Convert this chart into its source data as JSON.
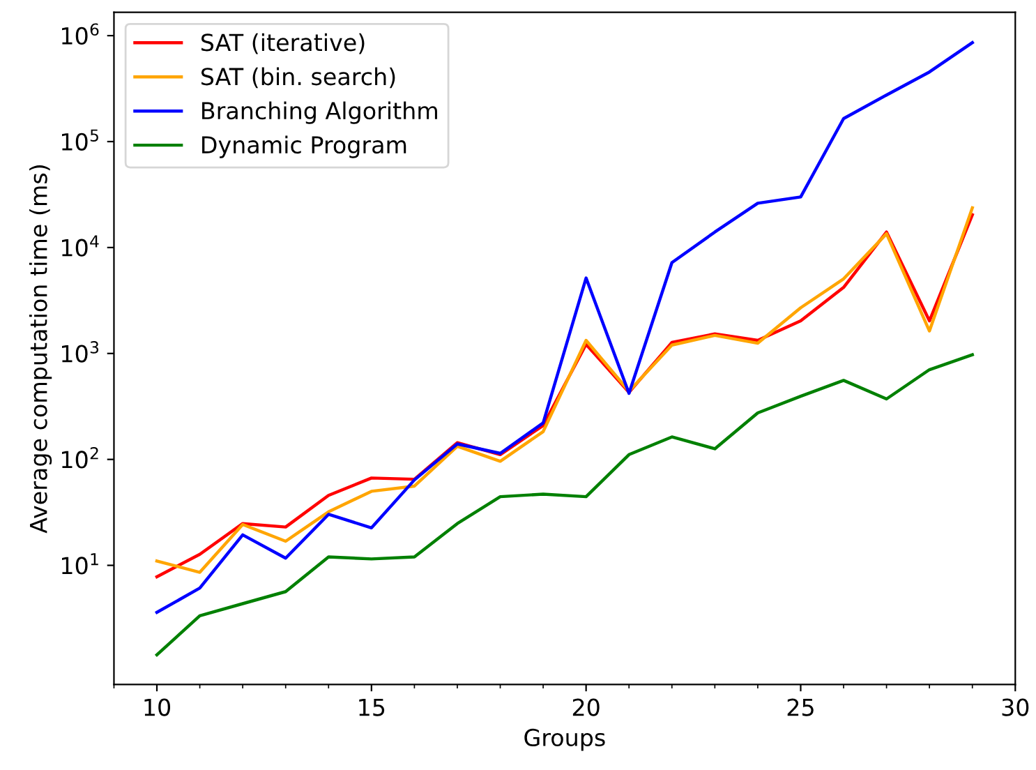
{
  "chart_data": {
    "type": "line",
    "xlabel": "Groups",
    "ylabel": "Average computation time (ms)",
    "log": "y",
    "grid": false,
    "legend": "top left",
    "x": [
      10,
      11,
      12,
      13,
      14,
      15,
      16,
      17,
      18,
      19,
      20,
      21,
      22,
      23,
      24,
      25,
      26,
      27,
      28,
      29
    ],
    "xlim": [
      9,
      30
    ],
    "xticks": [
      {
        "value": 9,
        "label": null
      },
      10,
      {
        "value": 11,
        "label": null
      },
      {
        "value": 12,
        "label": null
      },
      {
        "value": 13,
        "label": null
      },
      {
        "value": 14,
        "label": null
      },
      15,
      {
        "value": 16,
        "label": null
      },
      {
        "value": 17,
        "label": null
      },
      {
        "value": 18,
        "label": null
      },
      {
        "value": 19,
        "label": null
      },
      20,
      {
        "value": 21,
        "label": null
      },
      {
        "value": 22,
        "label": null
      },
      {
        "value": 23,
        "label": null
      },
      {
        "value": 24,
        "label": null
      },
      25,
      {
        "value": 26,
        "label": null
      },
      {
        "value": 27,
        "label": null
      },
      {
        "value": 28,
        "label": null
      },
      {
        "value": 29,
        "label": null
      },
      30
    ],
    "ylim": [
      0.75,
      1660000
    ],
    "yticks": [
      {
        "value": 10,
        "label": "10$^{1}$"
      },
      {
        "value": 100,
        "label": "10$^{2}$"
      },
      {
        "value": 1000,
        "label": "10$^{3}$"
      },
      {
        "value": 10000,
        "label": "10$^{4}$"
      },
      {
        "value": 100000,
        "label": "10$^{5}$"
      },
      {
        "value": 1000000,
        "label": "10$^{6}$"
      }
    ],
    "series": [
      {
        "name": "SAT (iterative)",
        "color": "#ff0000",
        "values": [
          7.8,
          12.7,
          24.8,
          23,
          45.8,
          66.7,
          65,
          144,
          111,
          209,
          1220,
          430,
          1270,
          1530,
          1330,
          2030,
          4200,
          14000,
          2030,
          20400
        ]
      },
      {
        "name": "SAT (bin. search)",
        "color": "#ffa500",
        "values": [
          11,
          8.6,
          24.3,
          16.9,
          32,
          50,
          56,
          133,
          96,
          183,
          1330,
          440,
          1200,
          1480,
          1250,
          2700,
          5060,
          13500,
          1630,
          23700
        ]
      },
      {
        "name": "Branching Algorithm",
        "color": "#0000ff",
        "values": [
          3.6,
          6.1,
          19.4,
          11.7,
          30.3,
          22.6,
          64,
          140,
          114,
          221,
          5160,
          420,
          7200,
          14000,
          26200,
          30000,
          165000,
          275000,
          454000,
          860000
        ]
      },
      {
        "name": "Dynamic Program",
        "color": "#008000",
        "values": [
          1.43,
          3.34,
          4.35,
          5.65,
          12,
          11.5,
          12,
          24.8,
          44.5,
          47,
          44.5,
          111,
          163,
          126,
          275,
          395,
          557,
          372,
          703,
          973
        ]
      }
    ]
  }
}
